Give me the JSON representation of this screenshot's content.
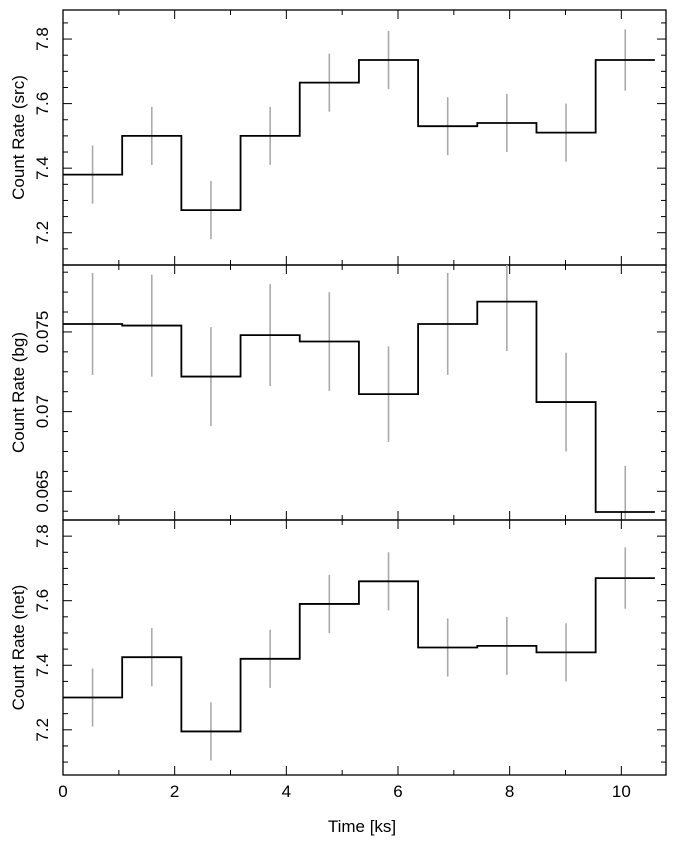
{
  "chart_data": {
    "type": "line",
    "style": "step-histogram-with-error-bars",
    "colors": {
      "step": "#000000",
      "error_bar": "#aaaaaa",
      "axis": "#000000"
    },
    "xlabel": "Time [ks]",
    "xlim": [
      0,
      10.8
    ],
    "x_ticks": [
      0,
      2,
      4,
      6,
      8,
      10
    ],
    "x_tick_labels": [
      "0",
      "2",
      "4",
      "6",
      "8",
      "10"
    ],
    "bin_edges": [
      0,
      1.06,
      2.12,
      3.18,
      4.24,
      5.3,
      6.36,
      7.42,
      8.48,
      9.54,
      10.6
    ],
    "panels": [
      {
        "ylabel": "Count Rate (src)",
        "ylim": [
          7.1,
          7.89
        ],
        "y_ticks": [
          7.2,
          7.4,
          7.6,
          7.8
        ],
        "y_tick_labels": [
          "7.2",
          "7.4",
          "7.6",
          "7.8"
        ],
        "values": [
          7.38,
          7.5,
          7.27,
          7.5,
          7.665,
          7.735,
          7.53,
          7.54,
          7.51,
          7.735
        ],
        "errors": [
          0.09,
          0.09,
          0.09,
          0.09,
          0.09,
          0.09,
          0.09,
          0.09,
          0.09,
          0.095
        ]
      },
      {
        "ylabel": "Count Rate (bg)",
        "ylim": [
          0.0632,
          0.0792
        ],
        "y_ticks": [
          0.065,
          0.07,
          0.075
        ],
        "y_tick_labels": [
          "0.065",
          "0.07",
          "0.075"
        ],
        "values": [
          0.0755,
          0.0754,
          0.0722,
          0.0748,
          0.0744,
          0.0711,
          0.0755,
          0.0769,
          0.0706,
          0.0637
        ],
        "errors": [
          0.0032,
          0.0032,
          0.0031,
          0.0032,
          0.0031,
          0.003,
          0.0032,
          0.0031,
          0.0031,
          0.0029
        ]
      },
      {
        "ylabel": "Count Rate (net)",
        "ylim": [
          7.06,
          7.85
        ],
        "y_ticks": [
          7.2,
          7.4,
          7.6,
          7.8
        ],
        "y_tick_labels": [
          "7.2",
          "7.4",
          "7.6",
          "7.8"
        ],
        "values": [
          7.3,
          7.425,
          7.195,
          7.42,
          7.59,
          7.66,
          7.455,
          7.46,
          7.44,
          7.67
        ],
        "errors": [
          0.09,
          0.09,
          0.09,
          0.09,
          0.09,
          0.09,
          0.09,
          0.09,
          0.09,
          0.095
        ]
      }
    ]
  }
}
